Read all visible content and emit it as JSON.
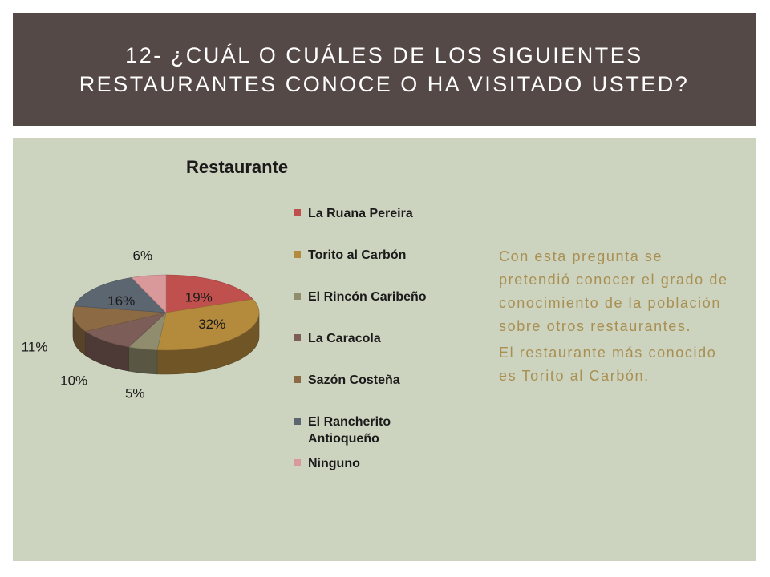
{
  "slide": {
    "title": "12- ¿CUÁL O CUÁLES DE LOS SIGUIENTES RESTAURANTES CONOCE O HA VISITADO USTED?",
    "paragraphs": [
      "Con esta pregunta se pretendió conocer el grado de conocimiento de la población sobre otros restaurantes.",
      "El restaurante más conocido es Torito al Carbón."
    ]
  },
  "chart_data": {
    "type": "pie",
    "title": "Restaurante",
    "legend_position": "right",
    "slices": [
      {
        "label": "La Ruana Pereira",
        "value": 19,
        "display": "19%",
        "color": "#c0504d"
      },
      {
        "label": "Torito al Carbón",
        "value": 32,
        "display": "32%",
        "color": "#b48a3d"
      },
      {
        "label": "El Rincón Caribeño",
        "value": 5,
        "display": "5%",
        "color": "#8f8d6e"
      },
      {
        "label": "La Caracola",
        "value": 10,
        "display": "10%",
        "color": "#7c5d57"
      },
      {
        "label": "Sazón Costeña",
        "value": 11,
        "display": "11%",
        "color": "#8c6a44"
      },
      {
        "label": "El Rancherito Antioqueño",
        "value": 16,
        "display": "16%",
        "color": "#5b6670"
      },
      {
        "label": "Ninguno",
        "value": 6,
        "display": "6%",
        "color": "#d9999a"
      }
    ]
  }
}
